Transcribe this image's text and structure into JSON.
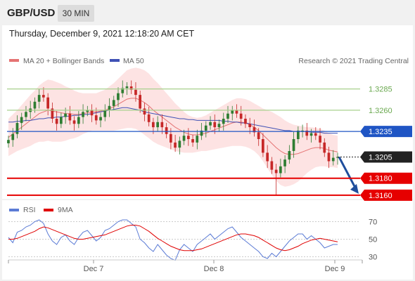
{
  "header": {
    "symbol": "GBP/USD",
    "timeframe": "30 MIN"
  },
  "datetime": "Thursday, December 9, 2021 12:18:20 AM CET",
  "legend": {
    "ma20_bb": "MA 20 + Bollinger Bands",
    "ma50": "MA 50",
    "credit": "Research © 2021 Trading Central"
  },
  "colors": {
    "up": "#2e7d32",
    "down": "#c62828",
    "resistance": "#a8d08d",
    "support": "#e60000",
    "ma50": "#3f51b5",
    "ma20": "#e57373",
    "bollinger": "#fddede",
    "pivot": "#1f55c4",
    "last": "#222222",
    "rsi": "#5b7bd5",
    "rsi_ma": "#e00000"
  },
  "chart_data": [
    {
      "type": "candlestick",
      "x_labels": [
        "Dec 7",
        "Dec 8",
        "Dec 9"
      ],
      "ylim": [
        1.315,
        1.3307
      ],
      "levels": [
        {
          "value": 1.3285,
          "label": "1.3285",
          "kind": "resistance"
        },
        {
          "value": 1.326,
          "label": "1.3260",
          "kind": "resistance"
        },
        {
          "value": 1.3235,
          "label": "1.3235",
          "kind": "pivot"
        },
        {
          "value": 1.3205,
          "label": "1.3205",
          "kind": "last"
        },
        {
          "value": 1.318,
          "label": "1.3180",
          "kind": "support"
        },
        {
          "value": 1.316,
          "label": "1.3160",
          "kind": "support"
        }
      ],
      "closes": [
        1.3225,
        1.3232,
        1.3245,
        1.3252,
        1.3258,
        1.3262,
        1.327,
        1.3278,
        1.3275,
        1.3262,
        1.325,
        1.3244,
        1.3252,
        1.3256,
        1.3248,
        1.3244,
        1.3252,
        1.3258,
        1.326,
        1.3254,
        1.3248,
        1.3252,
        1.326,
        1.3265,
        1.3272,
        1.328,
        1.3286,
        1.3288,
        1.3284,
        1.3278,
        1.3262,
        1.3255,
        1.3246,
        1.324,
        1.3246,
        1.324,
        1.3232,
        1.3222,
        1.3216,
        1.3224,
        1.323,
        1.3226,
        1.3222,
        1.323,
        1.3236,
        1.3242,
        1.3246,
        1.324,
        1.3244,
        1.325,
        1.3256,
        1.326,
        1.3256,
        1.325,
        1.3244,
        1.324,
        1.3234,
        1.3226,
        1.321,
        1.32,
        1.319,
        1.3186,
        1.3194,
        1.3202,
        1.3212,
        1.3226,
        1.3236,
        1.3236,
        1.323,
        1.3233,
        1.323,
        1.3222,
        1.321,
        1.32,
        1.3204,
        1.3205
      ],
      "ma20": [
        1.3228,
        1.3232,
        1.3236,
        1.324,
        1.3244,
        1.3248,
        1.3252,
        1.3256,
        1.3258,
        1.326,
        1.3259,
        1.3258,
        1.3257,
        1.3256,
        1.3256,
        1.3255,
        1.3255,
        1.3256,
        1.3257,
        1.3258,
        1.3258,
        1.3259,
        1.326,
        1.3262,
        1.3264,
        1.3267,
        1.327,
        1.3273,
        1.3274,
        1.3274,
        1.3272,
        1.3269,
        1.3265,
        1.326,
        1.3256,
        1.3252,
        1.3248,
        1.3244,
        1.324,
        1.3237,
        1.3234,
        1.3232,
        1.3231,
        1.3231,
        1.3232,
        1.3233,
        1.3235,
        1.3237,
        1.3239,
        1.3241,
        1.3243,
        1.3245,
        1.3246,
        1.3246,
        1.3245,
        1.3243,
        1.324,
        1.3236,
        1.3231,
        1.3226,
        1.3221,
        1.3216,
        1.3212,
        1.3209,
        1.3208,
        1.3208,
        1.3209,
        1.3211,
        1.3213,
        1.3215,
        1.3216,
        1.3216,
        1.3215,
        1.3213,
        1.3212,
        1.3211
      ],
      "ma50": [
        1.3246,
        1.3246,
        1.3247,
        1.3247,
        1.3248,
        1.3248,
        1.3249,
        1.325,
        1.325,
        1.3251,
        1.3251,
        1.3252,
        1.3252,
        1.3253,
        1.3253,
        1.3254,
        1.3254,
        1.3255,
        1.3255,
        1.3256,
        1.3257,
        1.3258,
        1.3259,
        1.326,
        1.3261,
        1.3262,
        1.3263,
        1.3263,
        1.3262,
        1.3261,
        1.326,
        1.3258,
        1.3257,
        1.3256,
        1.3255,
        1.3254,
        1.3253,
        1.3252,
        1.3251,
        1.325,
        1.325,
        1.3249,
        1.3249,
        1.3248,
        1.3248,
        1.3248,
        1.3248,
        1.3248,
        1.3248,
        1.3247,
        1.3247,
        1.3246,
        1.3246,
        1.3245,
        1.3245,
        1.3244,
        1.3243,
        1.3242,
        1.3241,
        1.324,
        1.3239,
        1.3238,
        1.3237,
        1.3236,
        1.3236,
        1.3235,
        1.3235,
        1.3235,
        1.3235,
        1.3234,
        1.3234,
        1.3234,
        1.3233,
        1.3233,
        1.3233,
        1.3233
      ],
      "bb_width": [
        0.0022,
        0.0023,
        0.0024,
        0.0026,
        0.0028,
        0.003,
        0.0031,
        0.0033,
        0.0035,
        0.0036,
        0.0036,
        0.0035,
        0.0034,
        0.0032,
        0.003,
        0.0028,
        0.0026,
        0.0024,
        0.0023,
        0.0022,
        0.0022,
        0.0023,
        0.0024,
        0.0026,
        0.0028,
        0.003,
        0.0032,
        0.0034,
        0.0035,
        0.0036,
        0.0037,
        0.0038,
        0.0038,
        0.0037,
        0.0036,
        0.0034,
        0.0032,
        0.003,
        0.0028,
        0.0026,
        0.0024,
        0.0022,
        0.0021,
        0.002,
        0.002,
        0.0021,
        0.0022,
        0.0023,
        0.0024,
        0.0025,
        0.0026,
        0.0027,
        0.0028,
        0.0028,
        0.0028,
        0.0028,
        0.0028,
        0.0029,
        0.0031,
        0.0034,
        0.0037,
        0.0039,
        0.004,
        0.0039,
        0.0037,
        0.0035,
        0.0033,
        0.003,
        0.0027,
        0.0025,
        0.0023,
        0.0022,
        0.0021,
        0.002,
        0.0019,
        0.0019
      ]
    },
    {
      "type": "line",
      "legend": [
        "RSI",
        "9MA"
      ],
      "ylim": [
        20,
        80
      ],
      "y_ticks": [
        "70",
        "50",
        "30"
      ],
      "rsi": [
        52,
        46,
        58,
        60,
        64,
        66,
        70,
        72,
        68,
        56,
        48,
        44,
        52,
        55,
        48,
        44,
        52,
        58,
        60,
        54,
        48,
        52,
        60,
        62,
        66,
        70,
        72,
        72,
        68,
        64,
        50,
        46,
        40,
        36,
        44,
        38,
        32,
        28,
        26,
        38,
        44,
        40,
        36,
        44,
        48,
        52,
        56,
        50,
        54,
        58,
        62,
        64,
        58,
        52,
        48,
        44,
        40,
        36,
        30,
        28,
        34,
        30,
        36,
        42,
        48,
        52,
        56,
        56,
        50,
        54,
        50,
        46,
        40,
        42,
        44,
        44
      ],
      "rsi_ma": [
        50,
        50,
        51,
        53,
        55,
        57,
        59,
        62,
        64,
        63,
        61,
        59,
        57,
        55,
        53,
        51,
        50,
        50,
        51,
        52,
        53,
        54,
        55,
        57,
        59,
        61,
        63,
        65,
        66,
        66,
        65,
        62,
        59,
        55,
        51,
        48,
        45,
        42,
        40,
        38,
        37,
        37,
        37,
        38,
        39,
        41,
        43,
        45,
        47,
        49,
        51,
        53,
        55,
        56,
        56,
        55,
        54,
        52,
        49,
        46,
        43,
        40,
        38,
        37,
        38,
        40,
        42,
        45,
        47,
        49,
        50,
        51,
        50,
        49,
        48,
        47
      ]
    }
  ]
}
